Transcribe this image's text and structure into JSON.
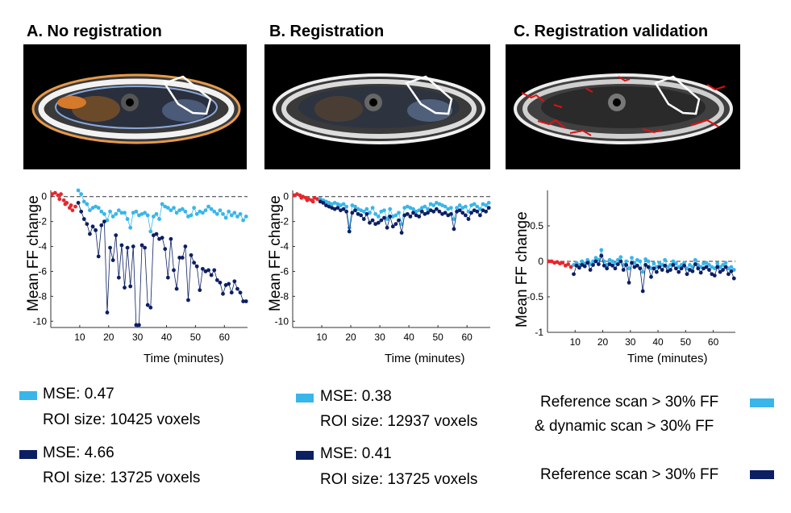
{
  "panels": [
    {
      "title": "A. No registration",
      "legend": [
        {
          "line1": "MSE: 0.47",
          "line2": "ROI size: 10425 voxels",
          "color": "#38b6ea"
        },
        {
          "line1": "MSE: 4.66",
          "line2": "ROI size: 13725 voxels",
          "color": "#0c1f63"
        }
      ]
    },
    {
      "title": "B. Registration",
      "legend": [
        {
          "line1": "MSE: 0.38",
          "line2": "ROI size: 12937 voxels",
          "color": "#38b6ea"
        },
        {
          "line1": "MSE: 0.41",
          "line2": "ROI size: 13725 voxels",
          "color": "#0c1f63"
        }
      ]
    },
    {
      "title": "C. Registration validation",
      "legend": [
        {
          "line1": "Reference scan > 30% FF",
          "line2": "& dynamic scan > 30% FF",
          "color": "#38b6ea"
        },
        {
          "line1": "Reference scan > 30% FF",
          "line2": "",
          "color": "#0c1f63"
        }
      ]
    }
  ],
  "chart_data": [
    {
      "type": "scatter",
      "title": "",
      "xlabel": "Time (minutes)",
      "ylabel": "Mean FF change",
      "xlim": [
        0,
        68
      ],
      "ylim": [
        -10.5,
        0.5
      ],
      "xticks": [
        10,
        20,
        30,
        40,
        50,
        60
      ],
      "yticks": [
        0,
        -2,
        -4,
        -6,
        -8,
        -10
      ],
      "reference_line": 0,
      "series": [
        {
          "color": "#e8262b",
          "x": [
            0.5,
            1.5,
            2.5,
            3.5,
            4.5,
            5.5,
            6.5,
            7.5,
            8.5,
            3,
            5,
            7
          ],
          "y": [
            0.2,
            0.3,
            0.1,
            0.2,
            -0.3,
            -0.5,
            -0.9,
            -1.1,
            -0.8,
            -0.2,
            -0.6,
            -0.7
          ]
        },
        {
          "color": "#38b6ea",
          "x": [
            9.5,
            10.5,
            11.5,
            12.5,
            13.5,
            14.5,
            15.5,
            16.5,
            17.5,
            18.5,
            19.5,
            20.5,
            21.5,
            22.5,
            23.5,
            24.5,
            25.5,
            26.5,
            27.5,
            28.5,
            29.5,
            30.5,
            31.5,
            32.5,
            33.5,
            34.5,
            35.5,
            36.5,
            37.5,
            38.5,
            39.5,
            40.5,
            41.5,
            42.5,
            43.5,
            44.5,
            45.5,
            46.5,
            47.5,
            48.5,
            49.5,
            50.5,
            51.5,
            52.5,
            53.5,
            54.5,
            55.5,
            56.5,
            57.5,
            58.5,
            59.5,
            60.5,
            61.5,
            62.5,
            63.5,
            64.5,
            65.5,
            66.5,
            67.5
          ],
          "y": [
            0.5,
            0.2,
            -0.4,
            -0.6,
            -1.1,
            -0.9,
            -0.8,
            -0.9,
            -1.2,
            -1.4,
            -1.9,
            -1.2,
            -1.6,
            -1.4,
            -1.1,
            -1.3,
            -1.3,
            -1.8,
            -2.5,
            -1.3,
            -1.2,
            -1.5,
            -1.4,
            -1.3,
            -1.5,
            -2.8,
            -1.6,
            -1.4,
            -1.8,
            -0.6,
            -0.8,
            -0.9,
            -1.1,
            -0.9,
            -1.3,
            -1.1,
            -1.0,
            -1.2,
            -1.6,
            -1.5,
            -0.9,
            -1.4,
            -1.2,
            -1.3,
            -1.1,
            -0.8,
            -1.0,
            -1.2,
            -1.4,
            -1.1,
            -1.4,
            -1.7,
            -1.2,
            -1.5,
            -1.3,
            -1.6,
            -1.4,
            -1.9,
            -1.6
          ]
        },
        {
          "color": "#0c1f63",
          "x": [
            9.5,
            10.5,
            11.5,
            12.5,
            13.5,
            14.5,
            15.5,
            16.5,
            17.5,
            18.5,
            19.5,
            20.5,
            21.5,
            22.5,
            23.5,
            24.5,
            25.5,
            26.5,
            27.5,
            28.5,
            29.5,
            30.5,
            31.5,
            32.5,
            33.5,
            34.5,
            35.5,
            36.5,
            37.5,
            38.5,
            39.5,
            40.5,
            41.5,
            42.5,
            43.5,
            44.5,
            45.5,
            46.5,
            47.5,
            48.5,
            49.5,
            50.5,
            51.5,
            52.5,
            53.5,
            54.5,
            55.5,
            56.5,
            57.5,
            58.5,
            59.5,
            60.5,
            61.5,
            62.5,
            63.5,
            64.5,
            65.5,
            66.5,
            67.5
          ],
          "y": [
            -0.5,
            -1.2,
            -1.8,
            -2.2,
            -3.0,
            -2.4,
            -2.7,
            -4.8,
            -2.3,
            -2.0,
            -9.3,
            -4.1,
            -5.1,
            -3.1,
            -6.5,
            -3.9,
            -7.3,
            -4.1,
            -7.2,
            -4.0,
            -10.3,
            -10.3,
            -3.9,
            -4.1,
            -8.7,
            -8.9,
            -3.1,
            -3.0,
            -3.4,
            -3.3,
            -4.2,
            -6.5,
            -3.4,
            -5.9,
            -7.4,
            -4.9,
            -4.9,
            -4.0,
            -8.3,
            -4.7,
            -5.3,
            -5.6,
            -7.5,
            -5.8,
            -6.0,
            -5.9,
            -6.3,
            -5.9,
            -6.7,
            -6.9,
            -7.8,
            -7.1,
            -7.0,
            -7.7,
            -6.8,
            -7.4,
            -7.7,
            -8.4,
            -8.4
          ]
        }
      ]
    },
    {
      "type": "scatter",
      "title": "",
      "xlabel": "Time (minutes)",
      "ylabel": "Mean FF change",
      "xlim": [
        0,
        68
      ],
      "ylim": [
        -10.5,
        0.5
      ],
      "xticks": [
        10,
        20,
        30,
        40,
        50,
        60
      ],
      "yticks": [
        0,
        -2,
        -4,
        -6,
        -8,
        -10
      ],
      "reference_line": 0,
      "series": [
        {
          "color": "#e8262b",
          "x": [
            0.5,
            1.5,
            2.5,
            3.5,
            4.5,
            5.5,
            6.5,
            7.5,
            8.5,
            3,
            5,
            7
          ],
          "y": [
            0.1,
            0.2,
            0.1,
            0.0,
            -0.1,
            -0.2,
            -0.3,
            -0.1,
            -0.2,
            -0.1,
            -0.3,
            -0.4
          ]
        },
        {
          "color": "#38b6ea",
          "x": [
            9.5,
            10.5,
            11.5,
            12.5,
            13.5,
            14.5,
            15.5,
            16.5,
            17.5,
            18.5,
            19.5,
            20.5,
            21.5,
            22.5,
            23.5,
            24.5,
            25.5,
            26.5,
            27.5,
            28.5,
            29.5,
            30.5,
            31.5,
            32.5,
            33.5,
            34.5,
            35.5,
            36.5,
            37.5,
            38.5,
            39.5,
            40.5,
            41.5,
            42.5,
            43.5,
            44.5,
            45.5,
            46.5,
            47.5,
            48.5,
            49.5,
            50.5,
            51.5,
            52.5,
            53.5,
            54.5,
            55.5,
            56.5,
            57.5,
            58.5,
            59.5,
            60.5,
            61.5,
            62.5,
            63.5,
            64.5,
            65.5,
            66.5,
            67.5
          ],
          "y": [
            -0.2,
            -0.3,
            -0.4,
            -0.5,
            -0.6,
            -0.5,
            -0.6,
            -0.7,
            -0.6,
            -0.8,
            -2.5,
            -0.7,
            -0.8,
            -1.0,
            -1.1,
            -1.2,
            -1.0,
            -1.3,
            -0.9,
            -1.4,
            -1.6,
            -1.2,
            -1.1,
            -1.8,
            -1.0,
            -1.6,
            -1.5,
            -1.3,
            -2.2,
            -0.9,
            -0.8,
            -0.9,
            -1.0,
            -1.2,
            -1.1,
            -0.9,
            -0.8,
            -1.0,
            -0.6,
            -0.7,
            -0.5,
            -0.6,
            -0.7,
            -0.8,
            -1.0,
            -0.9,
            -1.8,
            -0.9,
            -0.7,
            -0.9,
            -0.8,
            -1.2,
            -0.7,
            -0.6,
            -0.8,
            -1.0,
            -0.6,
            -0.7,
            -0.5
          ]
        },
        {
          "color": "#0c1f63",
          "x": [
            9.5,
            10.5,
            11.5,
            12.5,
            13.5,
            14.5,
            15.5,
            16.5,
            17.5,
            18.5,
            19.5,
            20.5,
            21.5,
            22.5,
            23.5,
            24.5,
            25.5,
            26.5,
            27.5,
            28.5,
            29.5,
            30.5,
            31.5,
            32.5,
            33.5,
            34.5,
            35.5,
            36.5,
            37.5,
            38.5,
            39.5,
            40.5,
            41.5,
            42.5,
            43.5,
            44.5,
            45.5,
            46.5,
            47.5,
            48.5,
            49.5,
            50.5,
            51.5,
            52.5,
            53.5,
            54.5,
            55.5,
            56.5,
            57.5,
            58.5,
            59.5,
            60.5,
            61.5,
            62.5,
            63.5,
            64.5,
            65.5,
            66.5,
            67.5
          ],
          "y": [
            -0.4,
            -0.5,
            -0.7,
            -0.8,
            -0.9,
            -1.0,
            -0.9,
            -1.1,
            -1.0,
            -1.2,
            -2.8,
            -1.3,
            -1.1,
            -1.4,
            -1.5,
            -1.8,
            -1.4,
            -2.1,
            -1.9,
            -2.2,
            -2.1,
            -1.9,
            -1.7,
            -2.5,
            -1.6,
            -2.4,
            -2.2,
            -1.9,
            -2.9,
            -1.5,
            -1.4,
            -1.6,
            -1.3,
            -1.5,
            -1.6,
            -1.2,
            -1.4,
            -1.3,
            -1.1,
            -1.2,
            -1.0,
            -1.2,
            -1.4,
            -1.3,
            -1.5,
            -1.4,
            -2.6,
            -1.2,
            -1.1,
            -1.3,
            -1.5,
            -1.8,
            -1.3,
            -1.1,
            -1.2,
            -1.5,
            -1.1,
            -1.2,
            -0.9
          ]
        }
      ]
    },
    {
      "type": "scatter",
      "title": "",
      "xlabel": "Time (minutes)",
      "ylabel": "Mean FF change",
      "xlim": [
        0,
        68
      ],
      "ylim": [
        -1,
        1
      ],
      "xticks": [
        10,
        20,
        30,
        40,
        50,
        60
      ],
      "yticks": [
        0.5,
        0,
        -0.5,
        -1
      ],
      "reference_line": 0,
      "series": [
        {
          "color": "#e8262b",
          "x": [
            0.5,
            1.5,
            2.5,
            3.5,
            4.5,
            5.5,
            6.5,
            7.5,
            8.5
          ],
          "y": [
            0.0,
            0.0,
            -0.02,
            -0.01,
            -0.03,
            -0.02,
            -0.06,
            -0.04,
            -0.08
          ]
        },
        {
          "color": "#38b6ea",
          "x": [
            9.5,
            10.5,
            11.5,
            12.5,
            13.5,
            14.5,
            15.5,
            16.5,
            17.5,
            18.5,
            19.5,
            20.5,
            21.5,
            22.5,
            23.5,
            24.5,
            25.5,
            26.5,
            27.5,
            28.5,
            29.5,
            30.5,
            31.5,
            32.5,
            33.5,
            34.5,
            35.5,
            36.5,
            37.5,
            38.5,
            39.5,
            40.5,
            41.5,
            42.5,
            43.5,
            44.5,
            45.5,
            46.5,
            47.5,
            48.5,
            49.5,
            50.5,
            51.5,
            52.5,
            53.5,
            54.5,
            55.5,
            56.5,
            57.5,
            58.5,
            59.5,
            60.5,
            61.5,
            62.5,
            63.5,
            64.5,
            65.5,
            66.5,
            67.5
          ],
          "y": [
            -0.05,
            -0.02,
            -0.05,
            0.0,
            -0.03,
            0.02,
            -0.04,
            0.0,
            0.05,
            0.02,
            0.16,
            0.0,
            -0.05,
            0.02,
            0.0,
            -0.03,
            0.02,
            0.06,
            -0.05,
            0.0,
            -0.1,
            0.05,
            -0.02,
            0.02,
            0.0,
            -0.15,
            0.03,
            0.0,
            -0.1,
            -0.03,
            -0.08,
            -0.02,
            -0.05,
            0.02,
            -0.08,
            -0.05,
            0.0,
            -0.03,
            -0.08,
            -0.05,
            -0.02,
            -0.1,
            -0.05,
            -0.08,
            0.02,
            -0.05,
            -0.08,
            -0.03,
            -0.02,
            -0.05,
            -0.08,
            -0.1,
            -0.03,
            -0.08,
            -0.05,
            -0.02,
            -0.1,
            -0.08,
            -0.12
          ]
        },
        {
          "color": "#0c1f63",
          "x": [
            9.5,
            10.5,
            11.5,
            12.5,
            13.5,
            14.5,
            15.5,
            16.5,
            17.5,
            18.5,
            19.5,
            20.5,
            21.5,
            22.5,
            23.5,
            24.5,
            25.5,
            26.5,
            27.5,
            28.5,
            29.5,
            30.5,
            31.5,
            32.5,
            33.5,
            34.5,
            35.5,
            36.5,
            37.5,
            38.5,
            39.5,
            40.5,
            41.5,
            42.5,
            43.5,
            44.5,
            45.5,
            46.5,
            47.5,
            48.5,
            49.5,
            50.5,
            51.5,
            52.5,
            53.5,
            54.5,
            55.5,
            56.5,
            57.5,
            58.5,
            59.5,
            60.5,
            61.5,
            62.5,
            63.5,
            64.5,
            65.5,
            66.5,
            67.5
          ],
          "y": [
            -0.18,
            -0.06,
            -0.09,
            -0.05,
            -0.07,
            -0.02,
            -0.12,
            -0.05,
            0.0,
            -0.04,
            0.08,
            -0.06,
            -0.1,
            -0.04,
            -0.06,
            -0.1,
            -0.04,
            0.0,
            -0.12,
            -0.05,
            -0.3,
            -0.02,
            -0.08,
            -0.06,
            -0.1,
            -0.42,
            -0.05,
            -0.08,
            -0.22,
            -0.1,
            -0.15,
            -0.08,
            -0.12,
            -0.06,
            -0.14,
            -0.12,
            -0.05,
            -0.1,
            -0.15,
            -0.1,
            -0.06,
            -0.18,
            -0.12,
            -0.14,
            -0.04,
            -0.1,
            -0.16,
            -0.1,
            -0.08,
            -0.12,
            -0.18,
            -0.2,
            -0.08,
            -0.15,
            -0.12,
            -0.08,
            -0.18,
            -0.14,
            -0.24
          ]
        }
      ]
    }
  ]
}
